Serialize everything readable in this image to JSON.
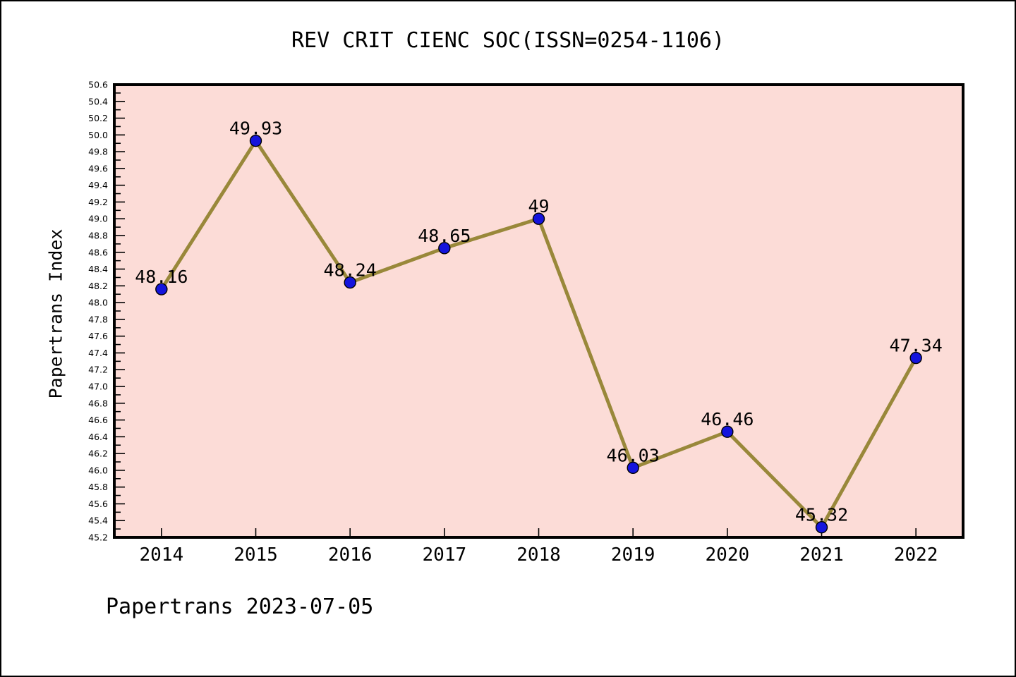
{
  "page": {
    "title": "REV CRIT CIENC SOC(ISSN=0254-1106)",
    "footer": "Papertrans 2023-07-05"
  },
  "chart_data": {
    "type": "line",
    "title": "REV CRIT CIENC SOC(ISSN=0254-1106)",
    "xlabel": "",
    "ylabel": "Papertrans Index",
    "categories": [
      "2014",
      "2015",
      "2016",
      "2017",
      "2018",
      "2019",
      "2020",
      "2021",
      "2022"
    ],
    "series": [
      {
        "name": "Papertrans Index",
        "values": [
          48.16,
          49.93,
          48.24,
          48.65,
          49,
          46.03,
          46.46,
          45.32,
          47.34
        ],
        "point_labels": [
          "48.16",
          "49.93",
          "48.24",
          "48.65",
          "49",
          "46.03",
          "46.46",
          "45.32",
          "47.34"
        ]
      }
    ],
    "ylim": [
      45.2,
      50.6
    ],
    "ytick_major_step": 0.2,
    "ytick_minor_step": 0.1,
    "grid": "off",
    "legend": "none",
    "annotation": "Papertrans 2023-07-05",
    "colors": {
      "page_background": "#ffffff",
      "plot_background": "#fcdcd7",
      "line": "#99883a",
      "marker_fill": "#1414dd",
      "marker_edge": "#000000",
      "axis": "#000000",
      "text": "#000000"
    }
  }
}
